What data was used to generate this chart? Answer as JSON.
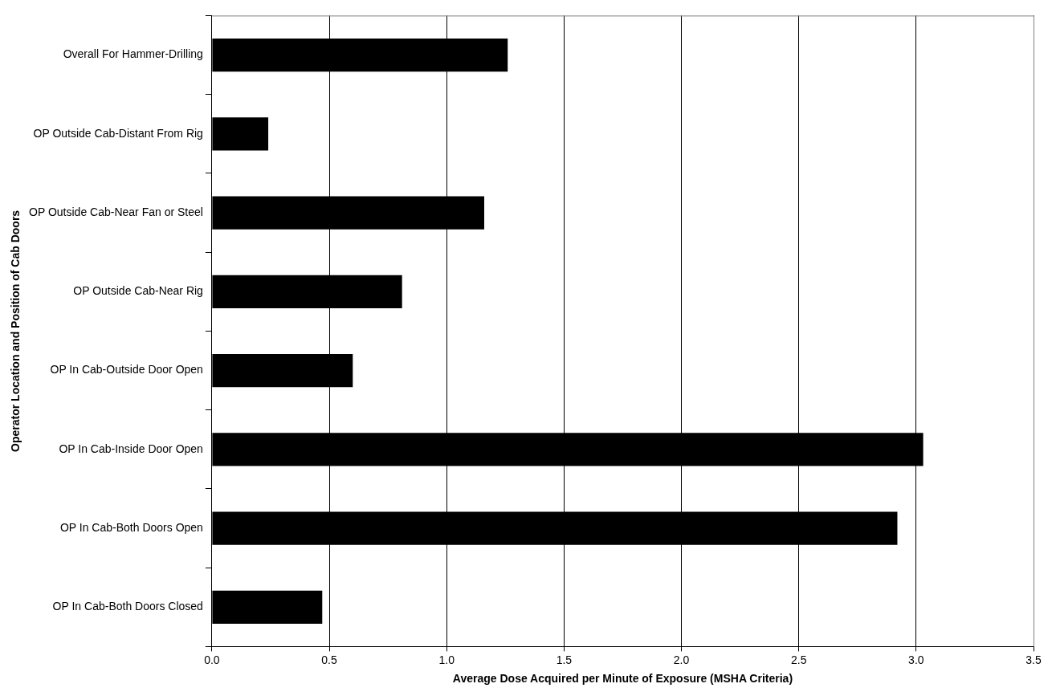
{
  "chart_data": {
    "type": "bar",
    "orientation": "horizontal",
    "xlabel": "Average Dose Acquired per Minute of Exposure (MSHA Criteria)",
    "ylabel": "Operator Location and Position of Cab Doors",
    "categories": [
      "Overall For Hammer-Drilling",
      "OP Outside Cab-Distant From Rig",
      "OP Outside Cab-Near Fan or Steel",
      "OP Outside Cab-Near Rig",
      "OP In Cab-Outside Door Open",
      "OP In Cab-Inside Door Open",
      "OP In Cab-Both Doors Open",
      "OP In Cab-Both Doors Closed"
    ],
    "values": [
      1.26,
      0.24,
      1.16,
      0.81,
      0.6,
      3.03,
      2.92,
      0.47
    ],
    "color": "#000000",
    "xlim": [
      0,
      3.5
    ],
    "xticks": [
      {
        "value": 0,
        "label": "0.0"
      },
      {
        "value": 0.5,
        "label": "0.5"
      },
      {
        "value": 1,
        "label": "1.0"
      },
      {
        "value": 1.5,
        "label": "1.5"
      },
      {
        "value": 2,
        "label": "2.0"
      },
      {
        "value": 2.5,
        "label": "2.5"
      },
      {
        "value": 3,
        "label": "3.0"
      },
      {
        "value": 3.5,
        "label": "3.5"
      }
    ],
    "grid": "x",
    "legend": false
  }
}
